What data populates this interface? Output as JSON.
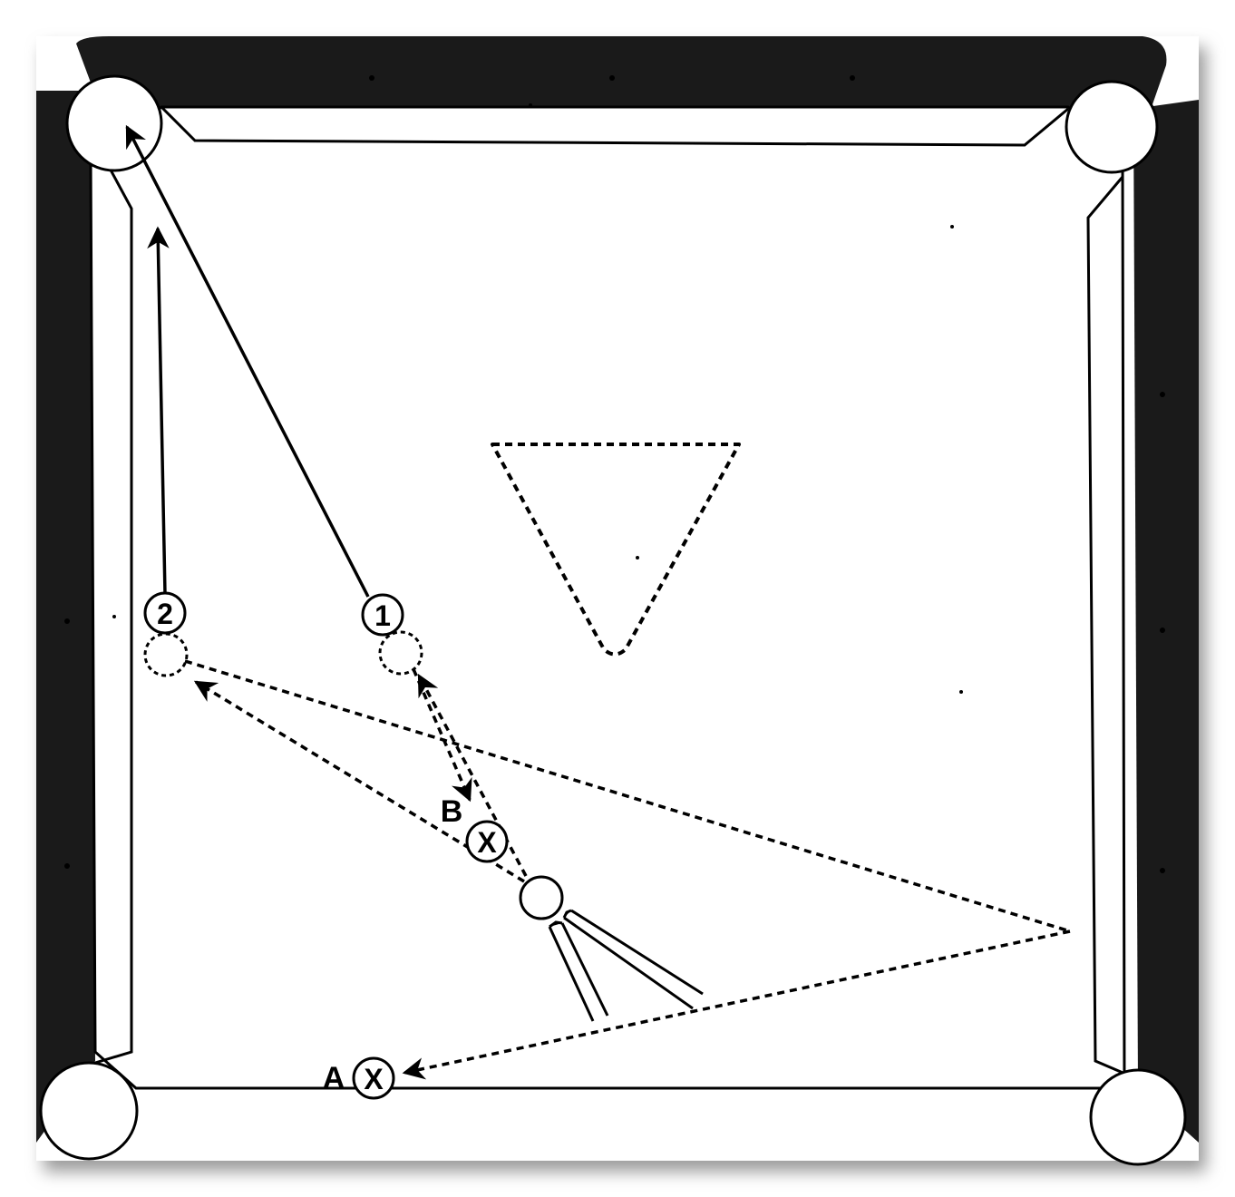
{
  "diagram": {
    "ball_labels": {
      "ball_1": "1",
      "ball_2": "2"
    },
    "target_labels": {
      "a_letter": "A",
      "a_mark": "X",
      "b_letter": "B",
      "b_mark": "X"
    },
    "colors": {
      "ink": "#000000",
      "cloth": "#ffffff",
      "rail": "#1a1a1a",
      "shadow": "#9a9a9a"
    }
  }
}
